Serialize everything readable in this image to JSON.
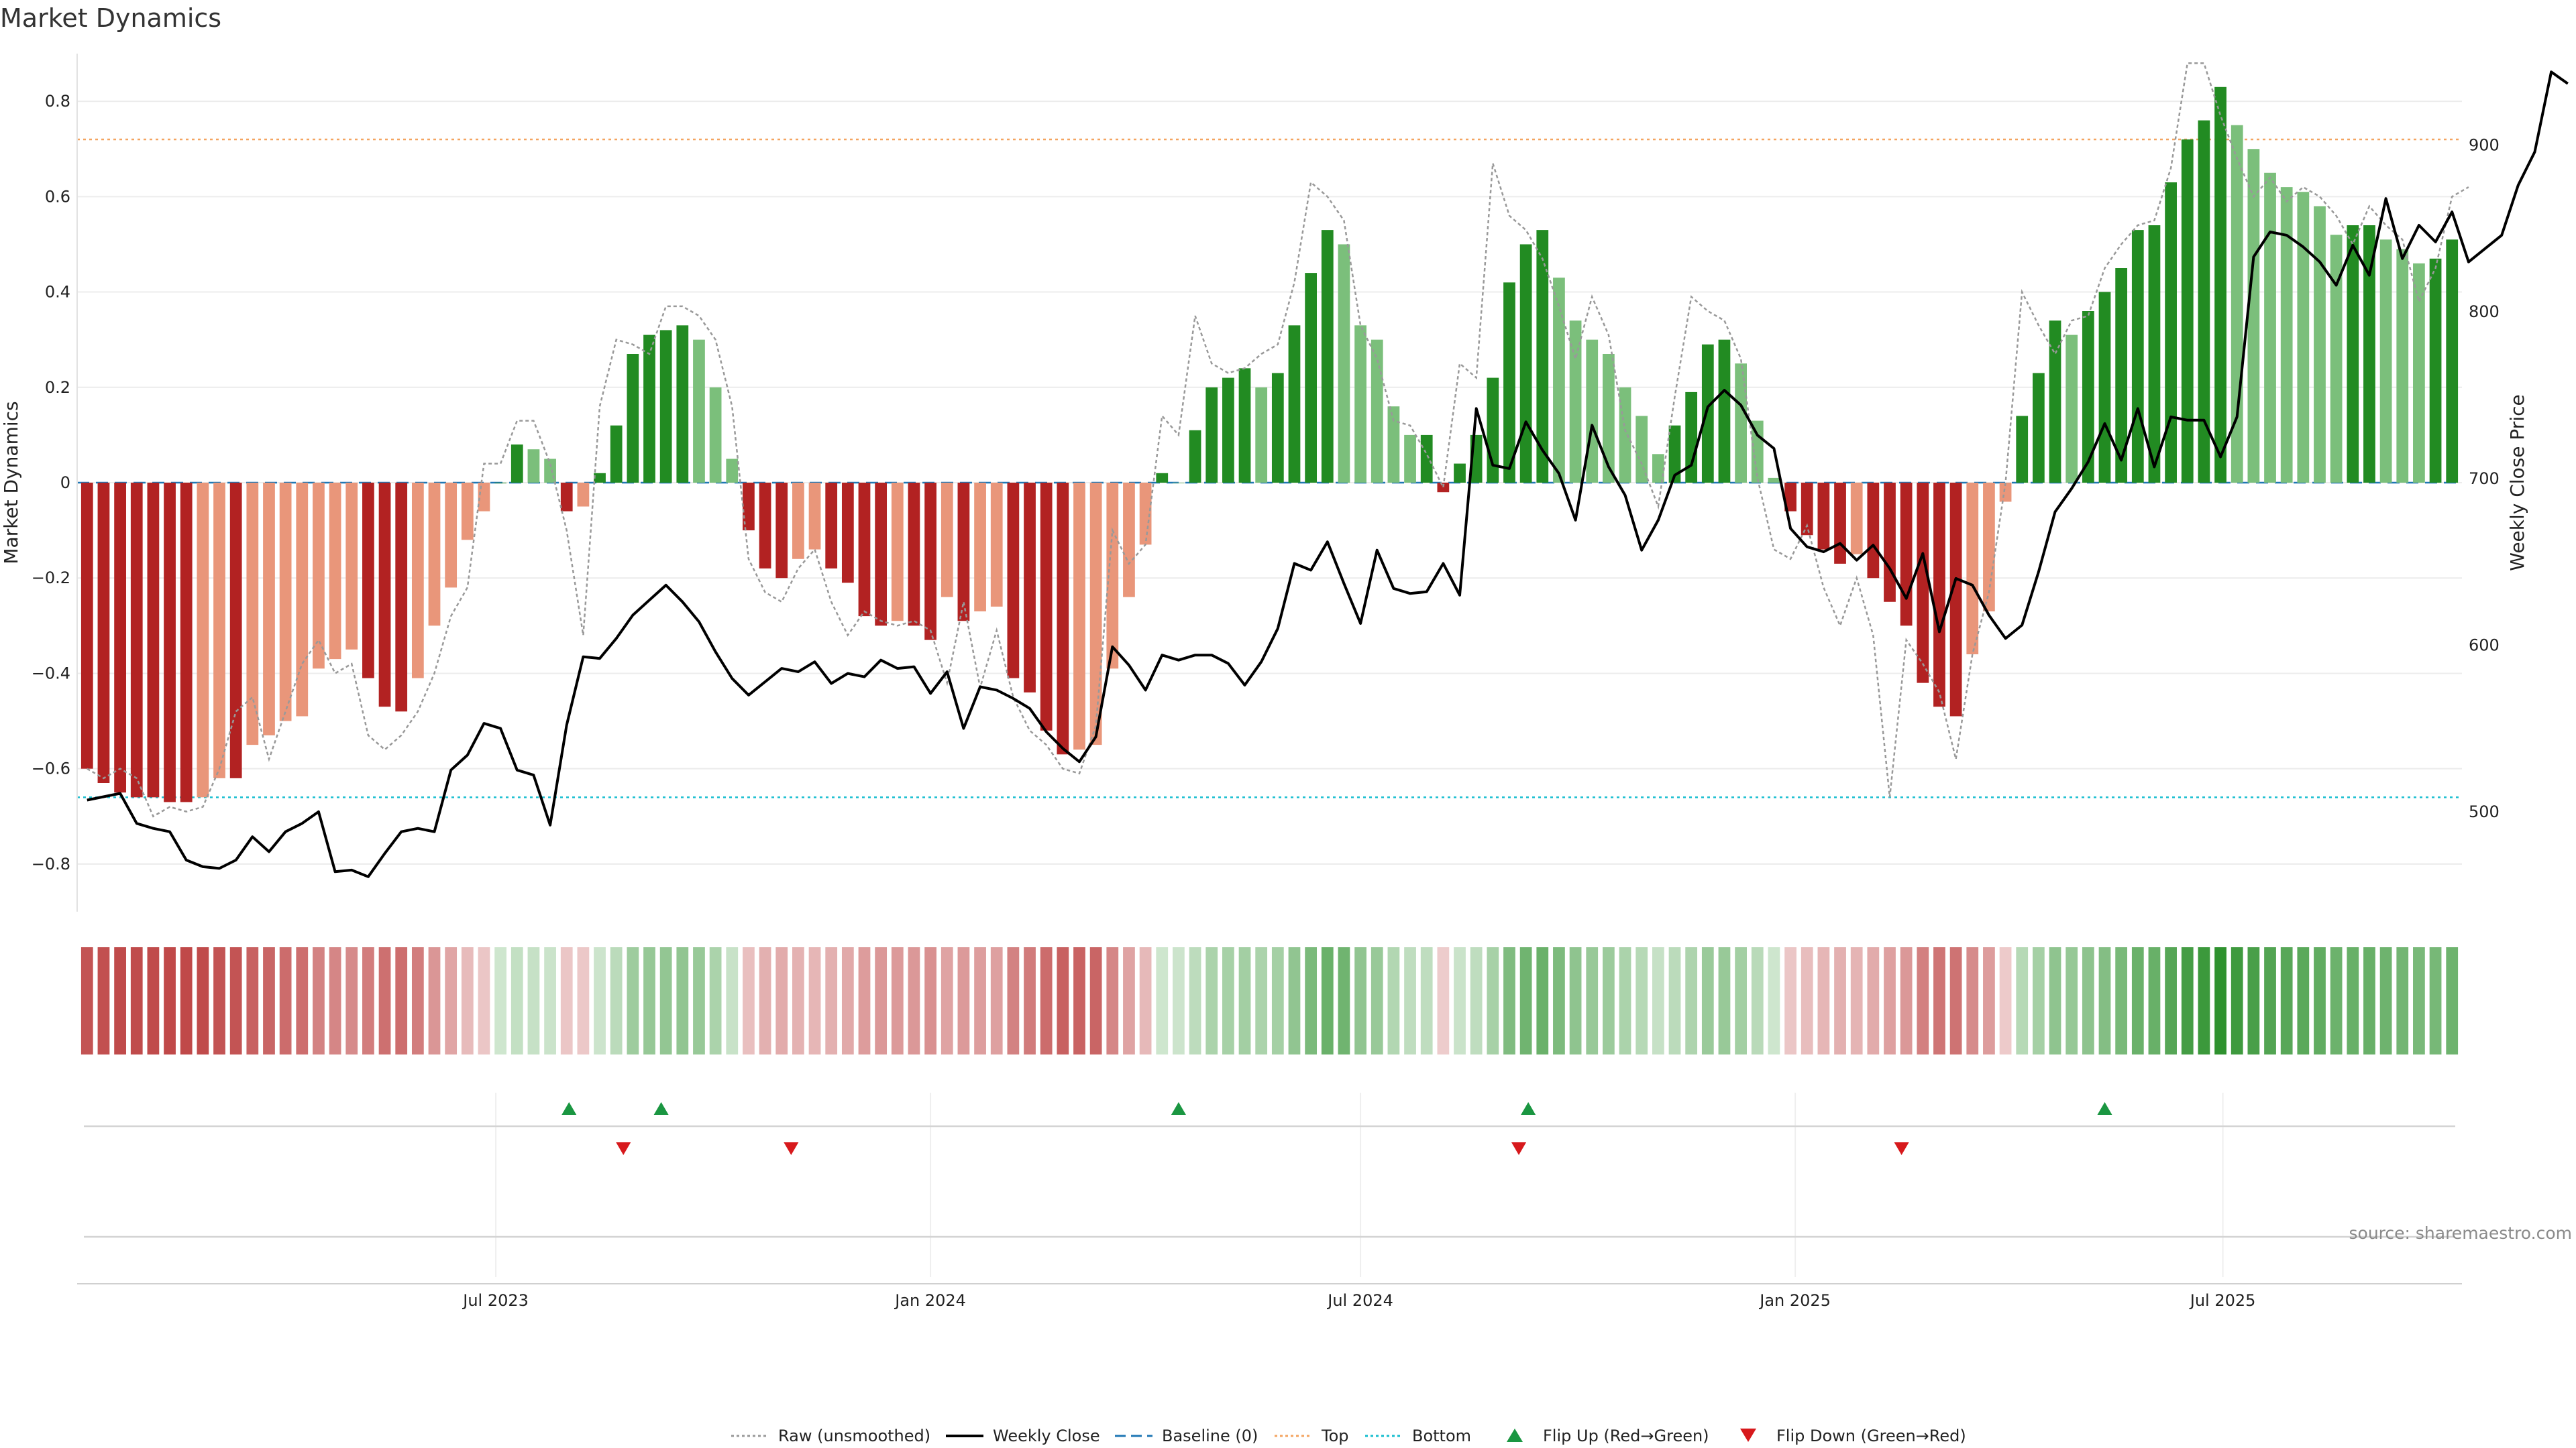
{
  "chart_data": {
    "type": "bar",
    "title": "Market Dynamics",
    "ylabel_left": "Market Dynamics",
    "ylabel_right": "Weekly Close Price",
    "source": "source: sharemaestro.com",
    "x_start": "2023-01-09",
    "interval_days": 7,
    "x_ticks": [
      "Jul 2023",
      "Jan 2024",
      "Jul 2024",
      "Jan 2025",
      "Jul 2025"
    ],
    "x_tick_dates": [
      "2023-07-01",
      "2024-01-01",
      "2024-07-01",
      "2025-01-01",
      "2025-07-01"
    ],
    "left_yticks": [
      "−0.8",
      "−0.6",
      "−0.4",
      "−0.2",
      "0",
      "0.2",
      "0.4",
      "0.6",
      "0.8"
    ],
    "left_ytick_values": [
      -0.8,
      -0.6,
      -0.4,
      -0.2,
      0,
      0.2,
      0.4,
      0.6,
      0.8
    ],
    "right_yticks": [
      "500",
      "600",
      "700",
      "800",
      "900"
    ],
    "right_ytick_values": [
      500,
      600,
      700,
      800,
      900
    ],
    "ylim_left": [
      -0.9,
      0.9
    ],
    "ylim_right": [
      440,
      955
    ],
    "baseline": 0,
    "top_level": 0.72,
    "bottom_level": -0.66,
    "grid": true,
    "legend_position": "bottom-center",
    "colors": {
      "strong_up": "#228b22",
      "weak_up": "#7bbf7b",
      "strong_down": "#b22222",
      "weak_down": "#e9967a",
      "raw": "#999999",
      "close": "#000000",
      "baseline": "#1f77b4",
      "top": "#f4a460",
      "bottom": "#17becf",
      "flip_up": "#1a9641",
      "flip_down": "#d7191c"
    },
    "series": [
      {
        "name": "Market Dynamics",
        "values": [
          -0.6,
          -0.63,
          -0.65,
          -0.66,
          -0.66,
          -0.67,
          -0.67,
          -0.66,
          -0.62,
          -0.62,
          -0.55,
          -0.53,
          -0.5,
          -0.49,
          -0.39,
          -0.37,
          -0.35,
          -0.41,
          -0.47,
          -0.48,
          -0.41,
          -0.3,
          -0.22,
          -0.12,
          -0.06,
          0.0,
          0.08,
          0.07,
          0.05,
          -0.06,
          -0.05,
          0.02,
          0.12,
          0.27,
          0.31,
          0.32,
          0.33,
          0.3,
          0.2,
          0.05,
          -0.1,
          -0.18,
          -0.2,
          -0.16,
          -0.14,
          -0.18,
          -0.21,
          -0.28,
          -0.3,
          -0.29,
          -0.3,
          -0.33,
          -0.24,
          -0.29,
          -0.27,
          -0.26,
          -0.41,
          -0.44,
          -0.52,
          -0.57,
          -0.56,
          -0.55,
          -0.39,
          -0.24,
          -0.13,
          0.02,
          0.0,
          0.11,
          0.2,
          0.22,
          0.24,
          0.2,
          0.23,
          0.33,
          0.44,
          0.53,
          0.5,
          0.33,
          0.3,
          0.16,
          0.1,
          0.1,
          -0.02,
          0.04,
          0.1,
          0.22,
          0.42,
          0.5,
          0.53,
          0.43,
          0.34,
          0.3,
          0.27,
          0.2,
          0.14,
          0.06,
          0.12,
          0.19,
          0.29,
          0.3,
          0.25,
          0.13,
          0.01,
          -0.06,
          -0.11,
          -0.14,
          -0.17,
          -0.15,
          -0.2,
          -0.25,
          -0.3,
          -0.42,
          -0.47,
          -0.49,
          -0.36,
          -0.27,
          -0.04,
          0.14,
          0.23,
          0.34,
          0.31,
          0.36,
          0.4,
          0.45,
          0.53,
          0.54,
          0.63,
          0.72,
          0.76,
          0.83,
          0.75,
          0.7,
          0.65,
          0.62,
          0.61,
          0.58,
          0.52,
          0.54,
          0.54,
          0.51,
          0.49,
          0.46,
          0.47,
          0.51
        ]
      },
      {
        "name": "Raw (unsmoothed)",
        "values": [
          -0.6,
          -0.62,
          -0.6,
          -0.62,
          -0.7,
          -0.68,
          -0.69,
          -0.68,
          -0.6,
          -0.48,
          -0.45,
          -0.58,
          -0.48,
          -0.38,
          -0.33,
          -0.4,
          -0.38,
          -0.53,
          -0.56,
          -0.53,
          -0.48,
          -0.4,
          -0.28,
          -0.22,
          0.04,
          0.04,
          0.13,
          0.13,
          0.04,
          -0.1,
          -0.32,
          0.16,
          0.3,
          0.29,
          0.27,
          0.37,
          0.37,
          0.35,
          0.3,
          0.16,
          -0.16,
          -0.23,
          -0.25,
          -0.18,
          -0.14,
          -0.25,
          -0.32,
          -0.27,
          -0.29,
          -0.3,
          -0.29,
          -0.31,
          -0.42,
          -0.25,
          -0.43,
          -0.31,
          -0.45,
          -0.52,
          -0.55,
          -0.6,
          -0.61,
          -0.51,
          -0.1,
          -0.17,
          -0.13,
          0.14,
          0.1,
          0.35,
          0.25,
          0.23,
          0.24,
          0.27,
          0.29,
          0.42,
          0.63,
          0.6,
          0.55,
          0.33,
          0.26,
          0.13,
          0.12,
          0.06,
          -0.01,
          0.25,
          0.22,
          0.67,
          0.56,
          0.53,
          0.47,
          0.37,
          0.26,
          0.39,
          0.31,
          0.11,
          0.04,
          -0.05,
          0.18,
          0.39,
          0.36,
          0.34,
          0.26,
          0.01,
          -0.14,
          -0.16,
          -0.09,
          -0.22,
          -0.3,
          -0.2,
          -0.32,
          -0.66,
          -0.33,
          -0.38,
          -0.44,
          -0.58,
          -0.36,
          -0.23,
          0.0,
          0.4,
          0.33,
          0.27,
          0.34,
          0.35,
          0.45,
          0.5,
          0.54,
          0.55,
          0.66,
          0.88,
          0.88,
          0.77,
          0.68,
          0.6,
          0.64,
          0.59,
          0.62,
          0.6,
          0.56,
          0.5,
          0.58,
          0.54,
          0.51,
          0.38,
          0.45,
          0.6,
          0.62
        ]
      },
      {
        "name": "Weekly Close",
        "values": [
          507,
          509,
          511,
          493,
          490,
          488,
          471,
          467,
          466,
          471,
          485,
          476,
          488,
          493,
          500,
          464,
          465,
          461,
          475,
          488,
          490,
          488,
          525,
          534,
          553,
          550,
          525,
          522,
          492,
          552,
          593,
          592,
          604,
          618,
          627,
          636,
          626,
          614,
          596,
          580,
          570,
          578,
          586,
          584,
          590,
          577,
          583,
          581,
          591,
          586,
          587,
          571,
          584,
          550,
          575,
          573,
          568,
          562,
          548,
          538,
          530,
          545,
          599,
          588,
          573,
          594,
          591,
          594,
          594,
          589,
          576,
          590,
          610,
          649,
          645,
          662,
          637,
          613,
          657,
          634,
          631,
          632,
          649,
          630,
          742,
          708,
          706,
          734,
          717,
          703,
          675,
          732,
          707,
          690,
          657,
          675,
          702,
          708,
          743,
          753,
          744,
          726,
          718,
          670,
          659,
          656,
          661,
          651,
          660,
          646,
          628,
          655,
          608,
          640,
          636,
          618,
          604,
          612,
          644,
          680,
          694,
          710,
          733,
          711,
          742,
          707,
          737,
          735,
          735,
          713,
          737,
          833,
          848,
          846,
          839,
          830,
          816,
          840,
          822,
          868,
          832,
          852,
          842,
          860,
          830,
          838,
          846,
          876,
          896,
          944,
          937
        ]
      }
    ],
    "strength": [
      0.58,
      0.6,
      0.62,
      0.62,
      0.62,
      0.63,
      0.63,
      0.62,
      0.58,
      0.58,
      0.52,
      0.5,
      0.47,
      0.46,
      0.37,
      0.35,
      0.33,
      0.39,
      0.45,
      0.46,
      0.39,
      0.28,
      0.21,
      0.11,
      0.06,
      0.02,
      0.07,
      0.06,
      0.04,
      0.06,
      0.05,
      0.03,
      0.11,
      0.24,
      0.28,
      0.29,
      0.3,
      0.27,
      0.18,
      0.05,
      0.09,
      0.16,
      0.18,
      0.15,
      0.13,
      0.16,
      0.19,
      0.25,
      0.27,
      0.26,
      0.27,
      0.3,
      0.22,
      0.26,
      0.24,
      0.23,
      0.37,
      0.4,
      0.47,
      0.52,
      0.51,
      0.5,
      0.35,
      0.22,
      0.12,
      0.02,
      0.03,
      0.1,
      0.18,
      0.2,
      0.22,
      0.18,
      0.21,
      0.3,
      0.4,
      0.48,
      0.45,
      0.3,
      0.27,
      0.15,
      0.09,
      0.09,
      0.03,
      0.04,
      0.09,
      0.2,
      0.38,
      0.45,
      0.48,
      0.39,
      0.31,
      0.27,
      0.25,
      0.18,
      0.13,
      0.06,
      0.11,
      0.17,
      0.26,
      0.27,
      0.22,
      0.12,
      0.02,
      0.06,
      0.1,
      0.13,
      0.16,
      0.14,
      0.18,
      0.23,
      0.27,
      0.38,
      0.43,
      0.44,
      0.33,
      0.25,
      0.04,
      0.13,
      0.21,
      0.31,
      0.28,
      0.32,
      0.36,
      0.41,
      0.48,
      0.49,
      0.57,
      0.65,
      0.69,
      0.75,
      0.68,
      0.63,
      0.59,
      0.56,
      0.55,
      0.52,
      0.47,
      0.49,
      0.49,
      0.46,
      0.44,
      0.41,
      0.42,
      0.46
    ],
    "flip_up_dates": [
      "2023-08-01",
      "2023-09-09",
      "2024-04-15",
      "2024-09-10",
      "2025-05-12"
    ],
    "flip_down_dates": [
      "2023-08-24",
      "2023-11-03",
      "2024-09-06",
      "2025-02-15"
    ],
    "legend": [
      {
        "label": "Raw (unsmoothed)",
        "style": "dotted-line",
        "color": "#999999"
      },
      {
        "label": "Weekly Close",
        "style": "solid-line",
        "color": "#000000"
      },
      {
        "label": "Baseline (0)",
        "style": "dashed-line",
        "color": "#1f77b4"
      },
      {
        "label": "Top",
        "style": "dotted-line",
        "color": "#f4a460"
      },
      {
        "label": "Bottom",
        "style": "dotted-line",
        "color": "#17becf"
      },
      {
        "label": "Flip Up (Red→Green)",
        "style": "triangle-up",
        "color": "#1a9641"
      },
      {
        "label": "Flip Down (Green→Red)",
        "style": "triangle-down",
        "color": "#d7191c"
      }
    ]
  }
}
